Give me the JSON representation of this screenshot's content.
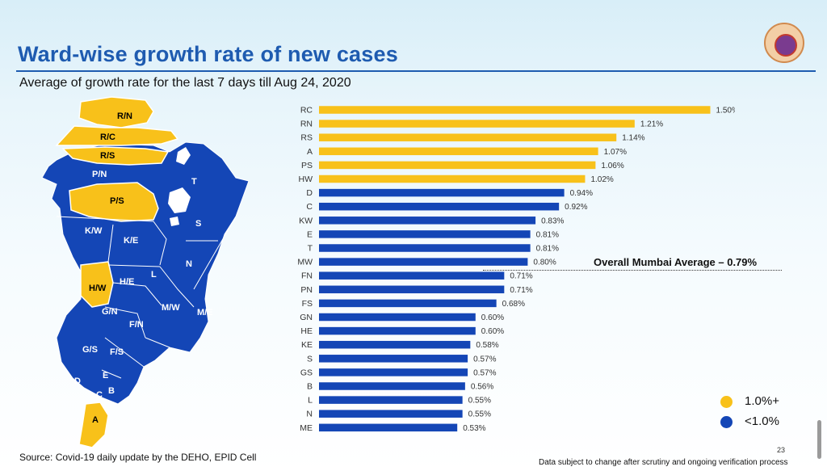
{
  "slide": {
    "title": "Ward-wise growth rate of new cases",
    "subtitle": "Average of growth rate for the last 7 days till Aug 24, 2020",
    "source": "Source: Covid-19 daily update by the DEHO, EPID Cell",
    "disclaimer": "Data subject to change after scrutiny and ongoing verification process",
    "page_number": "23",
    "average_note": "Overall Mumbai Average – 0.79%"
  },
  "legend": [
    {
      "label": "1.0%+",
      "color": "#f8c11a"
    },
    {
      "label": "<1.0%",
      "color": "#1446b6"
    }
  ],
  "map": {
    "yellow_wards": [
      "R/N",
      "R/C",
      "R/S",
      "P/S",
      "H/W",
      "A"
    ],
    "blue_wards": [
      "P/N",
      "T",
      "S",
      "K/W",
      "K/E",
      "N",
      "L",
      "H/E",
      "G/N",
      "F/N",
      "M/W",
      "M/E",
      "G/S",
      "F/S",
      "D",
      "E",
      "C",
      "B"
    ]
  },
  "chart_data": {
    "type": "bar",
    "orientation": "horizontal",
    "title": "Ward-wise growth rate of new cases",
    "categories": [
      "RC",
      "RN",
      "RS",
      "A",
      "PS",
      "HW",
      "D",
      "C",
      "KW",
      "E",
      "T",
      "MW",
      "FN",
      "PN",
      "FS",
      "GN",
      "HE",
      "KE",
      "S",
      "GS",
      "B",
      "L",
      "N",
      "ME"
    ],
    "values": [
      1.5,
      1.21,
      1.14,
      1.07,
      1.06,
      1.02,
      0.94,
      0.92,
      0.83,
      0.81,
      0.81,
      0.8,
      0.71,
      0.71,
      0.68,
      0.6,
      0.6,
      0.58,
      0.57,
      0.57,
      0.56,
      0.55,
      0.55,
      0.53
    ],
    "value_labels": [
      "1.50%",
      "1.21%",
      "1.14%",
      "1.07%",
      "1.06%",
      "1.02%",
      "0.94%",
      "0.92%",
      "0.83%",
      "0.81%",
      "0.81%",
      "0.80%",
      "0.71%",
      "0.71%",
      "0.68%",
      "0.60%",
      "0.60%",
      "0.58%",
      "0.57%",
      "0.57%",
      "0.56%",
      "0.55%",
      "0.55%",
      "0.53%"
    ],
    "threshold": 1.0,
    "average": 0.79,
    "colors": {
      "high": "#f8c11a",
      "low": "#1446b6"
    },
    "xlim": [
      0,
      1.6
    ]
  }
}
